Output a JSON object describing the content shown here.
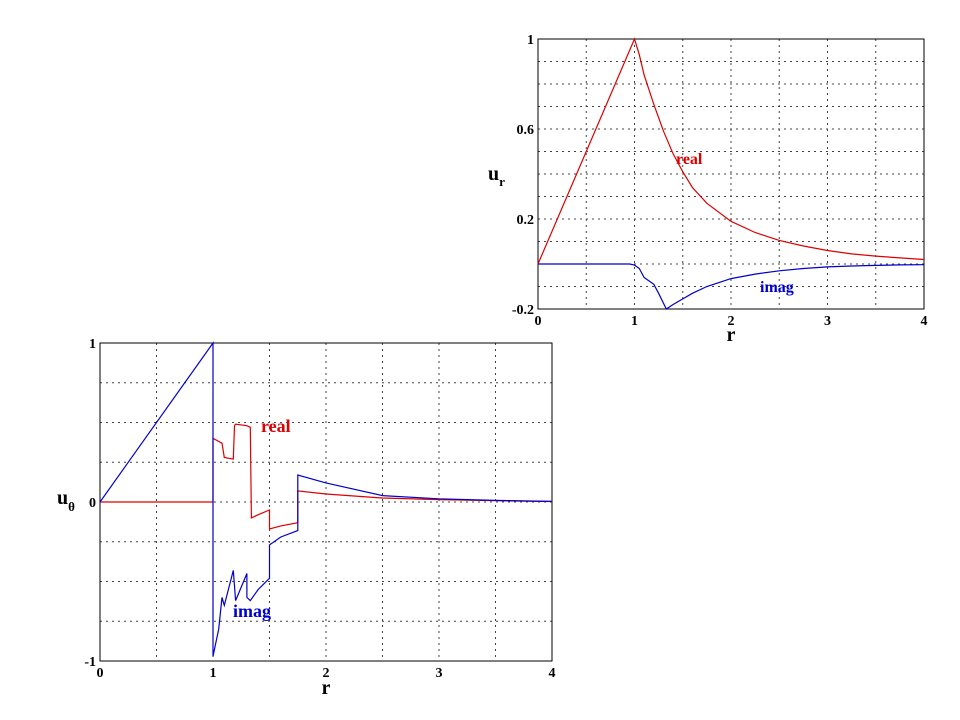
{
  "chart_data": [
    {
      "type": "line",
      "ylabel_main": "u",
      "ylabel_sub": "r",
      "xlabel": "r",
      "xlim": [
        0,
        4
      ],
      "ylim": [
        -0.2,
        1
      ],
      "x_ticks": [
        "0",
        "1",
        "2",
        "3",
        "4"
      ],
      "y_ticks": [
        "-0.2",
        "0.2",
        "0.6",
        "1"
      ],
      "y_tick_values": [
        -0.2,
        0.2,
        0.6,
        1
      ],
      "grid": "dotted, x every 0.5, y every 0.1",
      "series": [
        {
          "name": "real",
          "color": "#dd0000",
          "x": [
            0,
            1,
            1.05,
            1.1,
            1.2,
            1.3,
            1.4,
            1.5,
            1.6,
            1.75,
            2,
            2.25,
            2.5,
            2.75,
            3,
            3.25,
            3.5,
            3.75,
            4
          ],
          "y": [
            0,
            1,
            0.93,
            0.84,
            0.71,
            0.59,
            0.49,
            0.41,
            0.34,
            0.27,
            0.19,
            0.14,
            0.105,
            0.08,
            0.06,
            0.045,
            0.035,
            0.027,
            0.02
          ]
        },
        {
          "name": "imag",
          "color": "#0000cc",
          "x": [
            0,
            0.95,
            1,
            1.05,
            1.1,
            1.2,
            1.25,
            1.33,
            1.4,
            1.5,
            1.6,
            1.75,
            2,
            2.25,
            2.5,
            2.75,
            3,
            3.25,
            3.5,
            3.75,
            4
          ],
          "y": [
            0,
            0,
            -0.005,
            -0.02,
            -0.06,
            -0.09,
            -0.13,
            -0.2,
            -0.18,
            -0.155,
            -0.13,
            -0.1,
            -0.065,
            -0.045,
            -0.03,
            -0.02,
            -0.013,
            -0.009,
            -0.006,
            -0.004,
            -0.003
          ]
        }
      ]
    },
    {
      "type": "line",
      "ylabel_main": "u",
      "ylabel_sub": "θ",
      "xlabel": "r",
      "xlim": [
        0,
        4
      ],
      "ylim": [
        -1,
        1
      ],
      "x_ticks": [
        "0",
        "1",
        "2",
        "3",
        "4"
      ],
      "y_ticks": [
        "-1",
        "0",
        "1"
      ],
      "y_tick_values": [
        -1,
        0,
        1
      ],
      "grid": "dotted, x every 0.5, y every 0.25",
      "series": [
        {
          "name": "real",
          "color": "#dd0000",
          "x": [
            0,
            1,
            1,
            1.08,
            1.1,
            1.18,
            1.19,
            1.2,
            1.3,
            1.33,
            1.34,
            1.4,
            1.5,
            1.5,
            1.6,
            1.75,
            1.75,
            2,
            2.5,
            3,
            3.5,
            4
          ],
          "y": [
            0,
            0,
            0.4,
            0.37,
            0.28,
            0.27,
            0.48,
            0.49,
            0.48,
            0.47,
            -0.1,
            -0.08,
            -0.05,
            -0.17,
            -0.15,
            -0.13,
            0.07,
            0.05,
            0.025,
            0.015,
            0.008,
            0.003
          ]
        },
        {
          "name": "imag",
          "color": "#0000cc",
          "x": [
            0,
            1,
            1,
            1.05,
            1.08,
            1.1,
            1.18,
            1.2,
            1.3,
            1.3,
            1.33,
            1.4,
            1.5,
            1.5,
            1.6,
            1.75,
            1.75,
            2,
            2.5,
            3,
            3.5,
            4
          ],
          "y": [
            0,
            1,
            -0.97,
            -0.8,
            -0.6,
            -0.65,
            -0.43,
            -0.62,
            -0.45,
            -0.6,
            -0.62,
            -0.55,
            -0.48,
            -0.27,
            -0.22,
            -0.18,
            0.17,
            0.12,
            0.04,
            0.02,
            0.01,
            0.004
          ]
        }
      ]
    }
  ]
}
